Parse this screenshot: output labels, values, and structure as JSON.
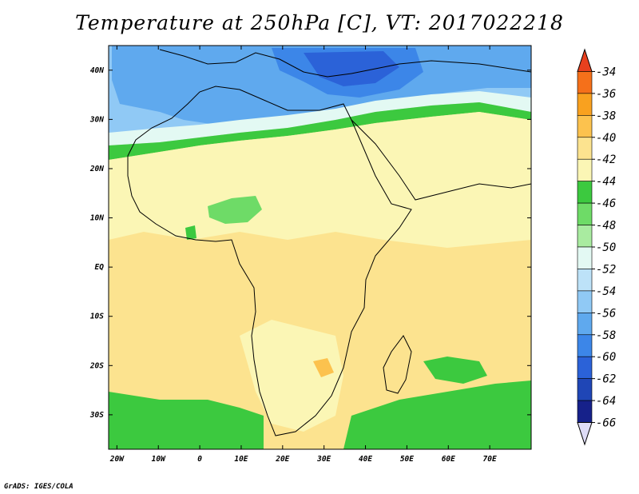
{
  "title": "Temperature at 250hPa [C], VT: 2017022218",
  "credit": "GrADS: IGES/COLA",
  "map": {
    "lon_range": [
      -22,
      80
    ],
    "lat_range": [
      -37,
      45
    ],
    "lon_ticks": [
      {
        "value": -20,
        "label": "20W"
      },
      {
        "value": -10,
        "label": "10W"
      },
      {
        "value": 0,
        "label": "0"
      },
      {
        "value": 10,
        "label": "10E"
      },
      {
        "value": 20,
        "label": "20E"
      },
      {
        "value": 30,
        "label": "30E"
      },
      {
        "value": 40,
        "label": "40E"
      },
      {
        "value": 50,
        "label": "50E"
      },
      {
        "value": 60,
        "label": "60E"
      },
      {
        "value": 70,
        "label": "70E"
      }
    ],
    "lat_ticks": [
      {
        "value": 40,
        "label": "40N"
      },
      {
        "value": 30,
        "label": "30N"
      },
      {
        "value": 20,
        "label": "20N"
      },
      {
        "value": 10,
        "label": "10N"
      },
      {
        "value": 0,
        "label": "EQ"
      },
      {
        "value": -10,
        "label": "10S"
      },
      {
        "value": -20,
        "label": "20S"
      },
      {
        "value": -30,
        "label": "30S"
      }
    ]
  },
  "colorbar": {
    "levels": [
      "-34",
      "-36",
      "-38",
      "-40",
      "-42",
      "-44",
      "-46",
      "-48",
      "-50",
      "-52",
      "-54",
      "-56",
      "-58",
      "-60",
      "-62",
      "-64",
      "-66"
    ],
    "colors": [
      "#e8401e",
      "#f5701a",
      "#f9a11f",
      "#fcc24e",
      "#fce38f",
      "#fbf6b5",
      "#3cc93f",
      "#6edb67",
      "#a9eba0",
      "#e3f9f3",
      "#bde2f8",
      "#90c9f5",
      "#5fa9ee",
      "#3c86e8",
      "#2b62d8",
      "#1f46b6",
      "#16218a",
      "#dedcf6"
    ]
  }
}
